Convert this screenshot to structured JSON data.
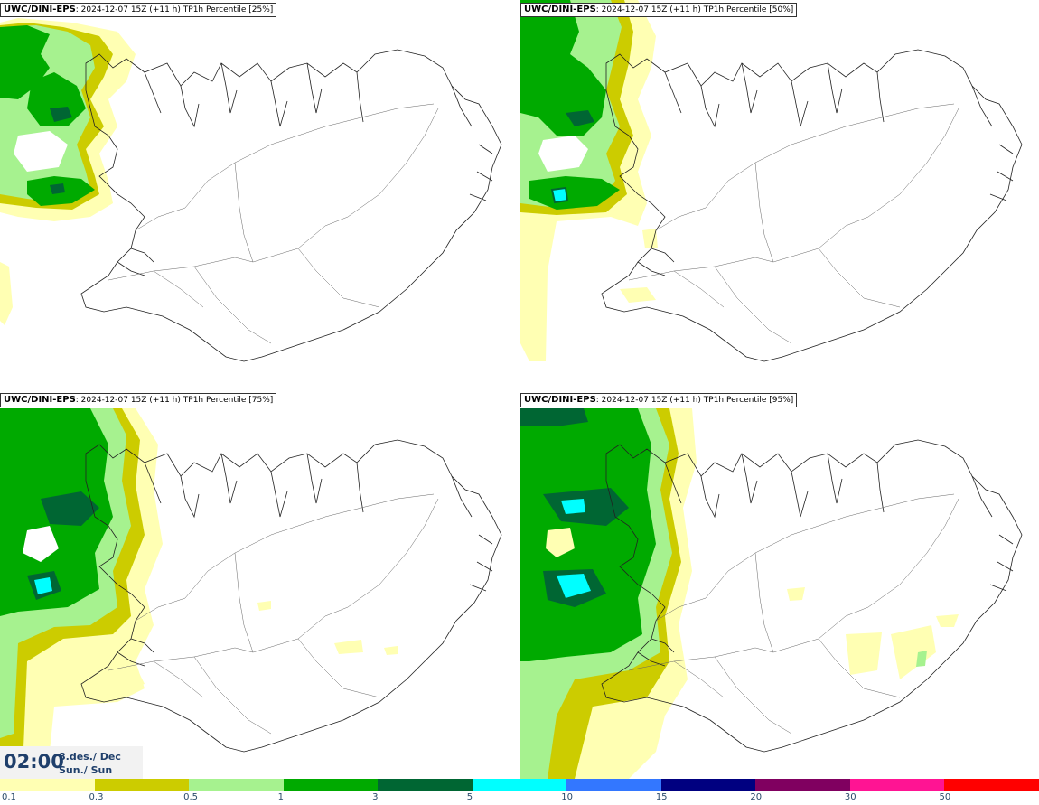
{
  "panels": [
    {
      "model": "UWC/DINI-EPS",
      "info": ": 2024-12-07 15Z (+11 h)",
      "label": "TP1h Percentile [25%]"
    },
    {
      "model": "UWC/DINI-EPS",
      "info": ": 2024-12-07 15Z (+11 h)",
      "label": "TP1h Percentile [50%]"
    },
    {
      "model": "UWC/DINI-EPS",
      "info": ": 2024-12-07 15Z (+11 h)",
      "label": "TP1h Percentile [75%]"
    },
    {
      "model": "UWC/DINI-EPS",
      "info": ": 2024-12-07 15Z (+11 h)",
      "label": "TP1h Percentile [95%]"
    }
  ],
  "valid_time": {
    "clock": "02:00",
    "date_line1": "8.des./ Dec",
    "date_line2": "Sun./ Sun"
  },
  "legend": {
    "colors": [
      "#ffffb3",
      "#cccc00",
      "#a6f28f",
      "#00aa00",
      "#006633",
      "#00ffff",
      "#3377ff",
      "#000080",
      "#800060",
      "#ff1493",
      "#ff0000"
    ],
    "ticks": [
      "0.1",
      "0.3",
      "0.5",
      "1",
      "3",
      "5",
      "10",
      "15",
      "20",
      "30",
      "50"
    ]
  }
}
